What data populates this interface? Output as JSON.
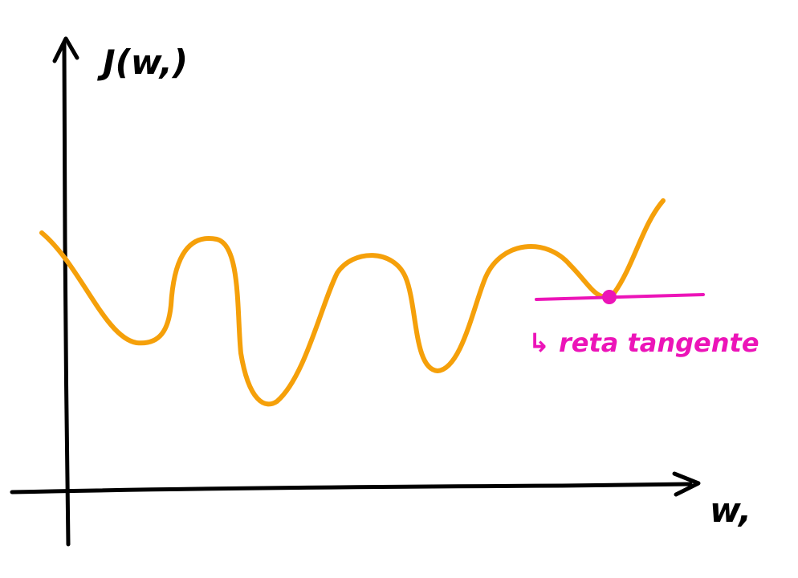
{
  "diagram": {
    "y_axis_label": "J(w,)",
    "x_axis_label": "w,",
    "tangent_label": "↳ reta tangente",
    "colors": {
      "axes": "#000000",
      "curve": "#f5a00a",
      "tangent": "#ec14b8"
    }
  }
}
